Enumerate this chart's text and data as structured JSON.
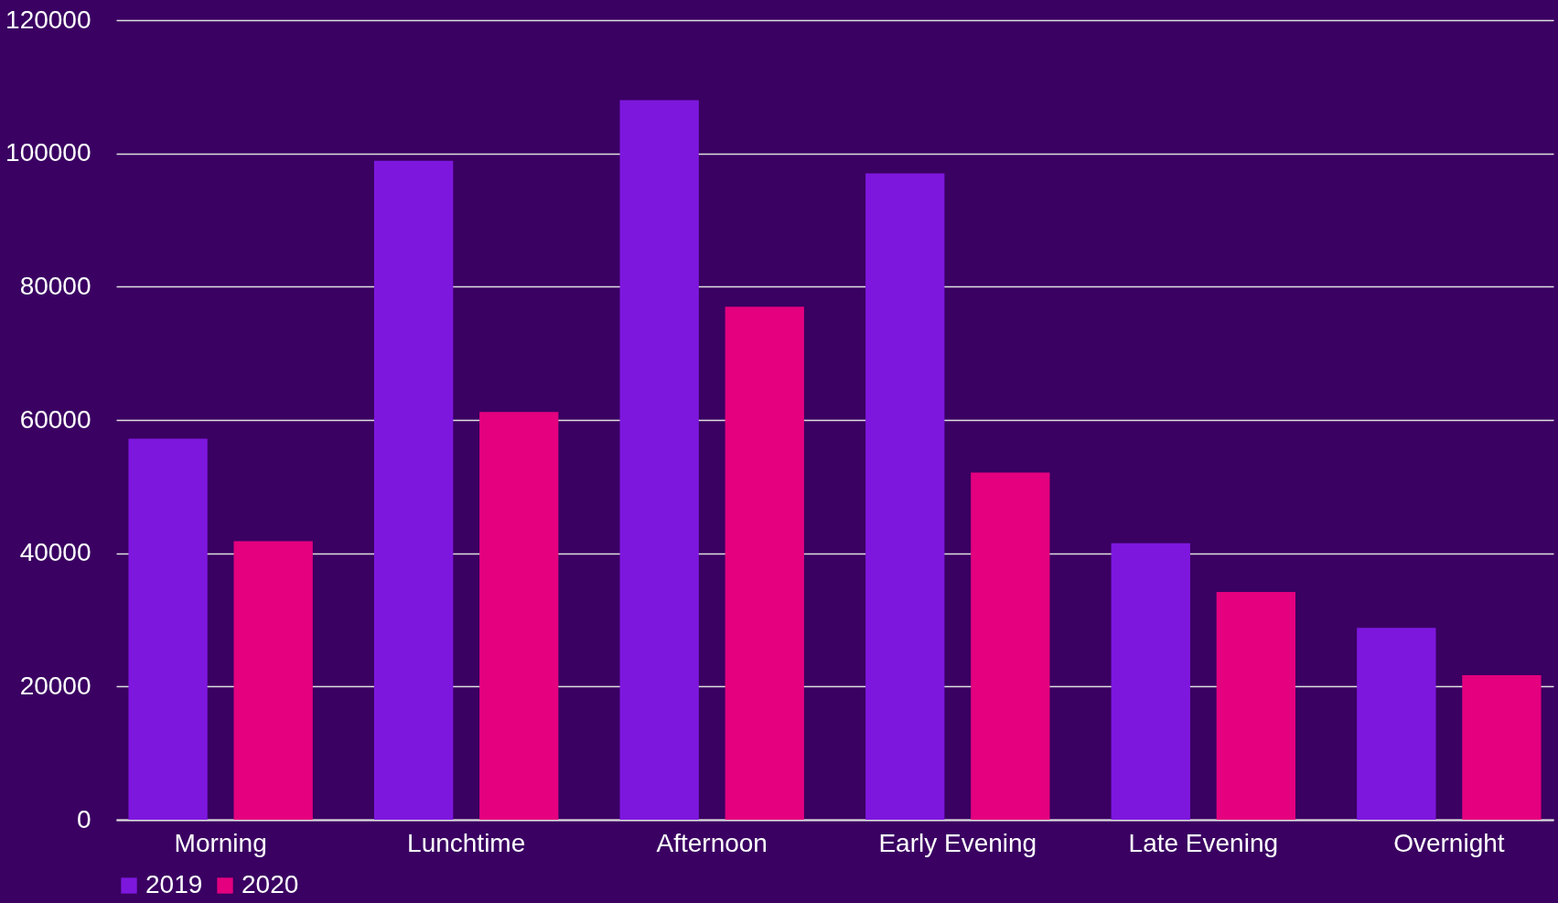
{
  "chart_data": {
    "type": "bar",
    "categories": [
      "Morning",
      "Lunchtime",
      "Afternoon",
      "Early Evening",
      "Late Evening",
      "Overnight"
    ],
    "series": [
      {
        "name": "2019",
        "color": "#7e17de",
        "values": [
          57200,
          98900,
          108000,
          97000,
          41500,
          28800
        ]
      },
      {
        "name": "2020",
        "color": "#e4007f",
        "values": [
          41800,
          61200,
          77000,
          52100,
          34200,
          21700
        ]
      }
    ],
    "ylim": [
      0,
      120000
    ],
    "yticks": [
      0,
      20000,
      40000,
      60000,
      80000,
      100000,
      120000
    ],
    "grid": "y",
    "legend": "bottom"
  }
}
